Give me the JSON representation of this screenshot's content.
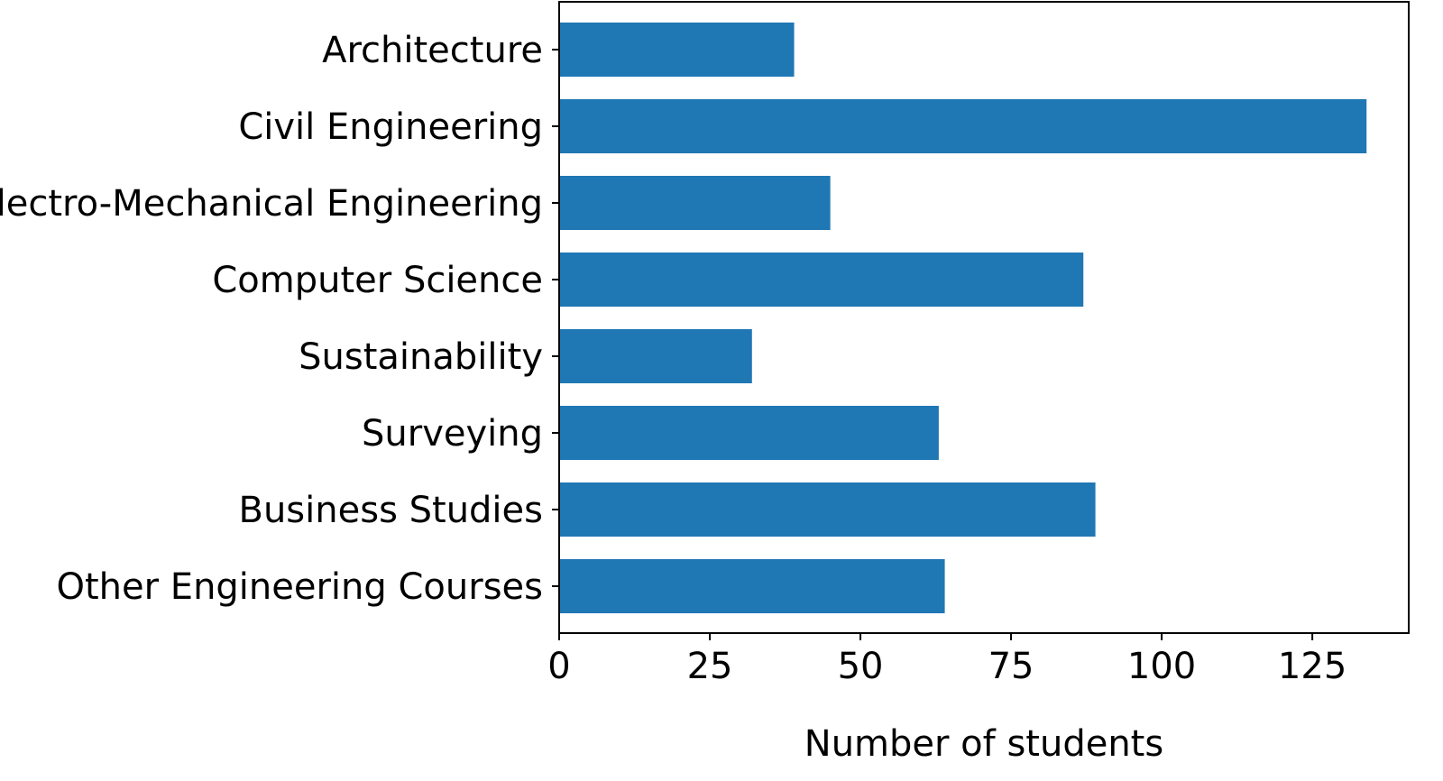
{
  "chart_data": {
    "type": "bar",
    "orientation": "horizontal",
    "categories": [
      "Architecture",
      "Civil Engineering",
      "Electro-Mechanical Engineering",
      "Computer Science",
      "Sustainability",
      "Surveying",
      "Business Studies",
      "Other Engineering Courses"
    ],
    "values": [
      39,
      134,
      45,
      87,
      32,
      63,
      89,
      64
    ],
    "title": "",
    "xlabel": "Number of students",
    "ylabel": "",
    "xlim": [
      0,
      141
    ],
    "xticks": [
      0,
      25,
      50,
      75,
      100,
      125
    ],
    "grid": false,
    "bar_color": "#1f77b4"
  }
}
